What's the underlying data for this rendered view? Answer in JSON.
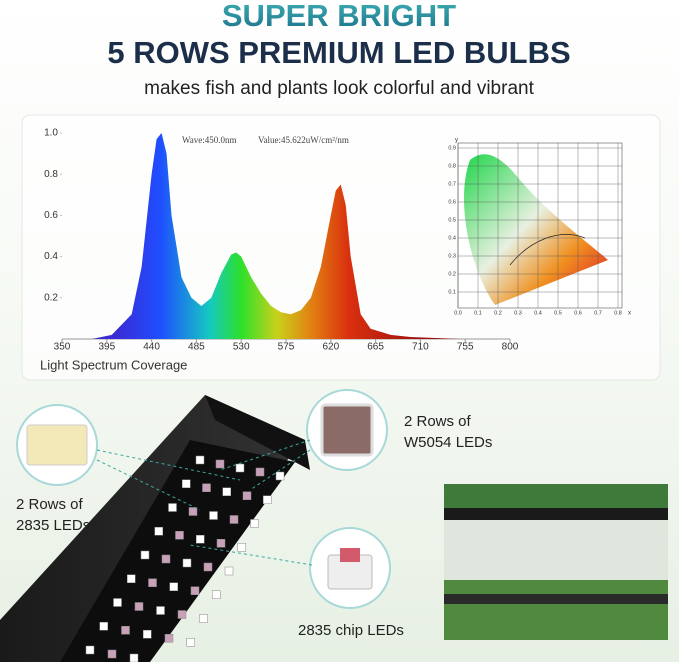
{
  "header": {
    "title": "SUPER BRIGHT",
    "headline": "5 ROWS PREMIUM LED BULBS",
    "subtitle": "makes fish and plants look colorful and vibrant"
  },
  "chart_data": {
    "type": "area",
    "x": [
      350,
      380,
      400,
      420,
      430,
      440,
      445,
      450,
      455,
      460,
      470,
      480,
      490,
      500,
      510,
      520,
      525,
      530,
      540,
      550,
      560,
      570,
      580,
      590,
      600,
      610,
      620,
      625,
      630,
      635,
      640,
      650,
      660,
      680,
      700,
      750,
      800
    ],
    "values": [
      0,
      0,
      0.02,
      0.12,
      0.35,
      0.8,
      0.97,
      1.0,
      0.9,
      0.6,
      0.3,
      0.2,
      0.16,
      0.2,
      0.32,
      0.41,
      0.42,
      0.4,
      0.3,
      0.22,
      0.16,
      0.13,
      0.12,
      0.14,
      0.2,
      0.35,
      0.6,
      0.72,
      0.75,
      0.65,
      0.4,
      0.12,
      0.05,
      0.02,
      0.01,
      0,
      0
    ],
    "xlim": [
      350,
      800
    ],
    "ylim": [
      0,
      1
    ],
    "xticks": [
      350,
      395,
      440,
      485,
      530,
      575,
      620,
      665,
      710,
      755,
      800
    ],
    "yticks": [
      {
        "value": 1,
        "label": "1.0"
      },
      0.8,
      0.6,
      0.4,
      0.2
    ],
    "readout": [
      "Wave:450.0nm",
      "Value:45.622uW/cm²/nm"
    ],
    "caption": "Light Spectrum Coverage"
  },
  "cie": {
    "y_axis": "y",
    "x_axis": "x",
    "yticks": [
      "0.9",
      "0.8",
      "0.7",
      "0.6",
      "0.5",
      "0.4",
      "0.3",
      "0.2",
      "0.1"
    ],
    "xticks": [
      "0.0",
      "0.1",
      "0.2",
      "0.3",
      "0.4",
      "0.5",
      "0.6",
      "0.7",
      "0.8"
    ]
  },
  "callouts": [
    {
      "lines": [
        "2 Rows of",
        "W5054 LEDs"
      ]
    },
    {
      "lines": [
        "2 Rows of",
        "2835 LEDs"
      ]
    },
    {
      "lines": [
        "2835 chip LEDs"
      ]
    }
  ]
}
